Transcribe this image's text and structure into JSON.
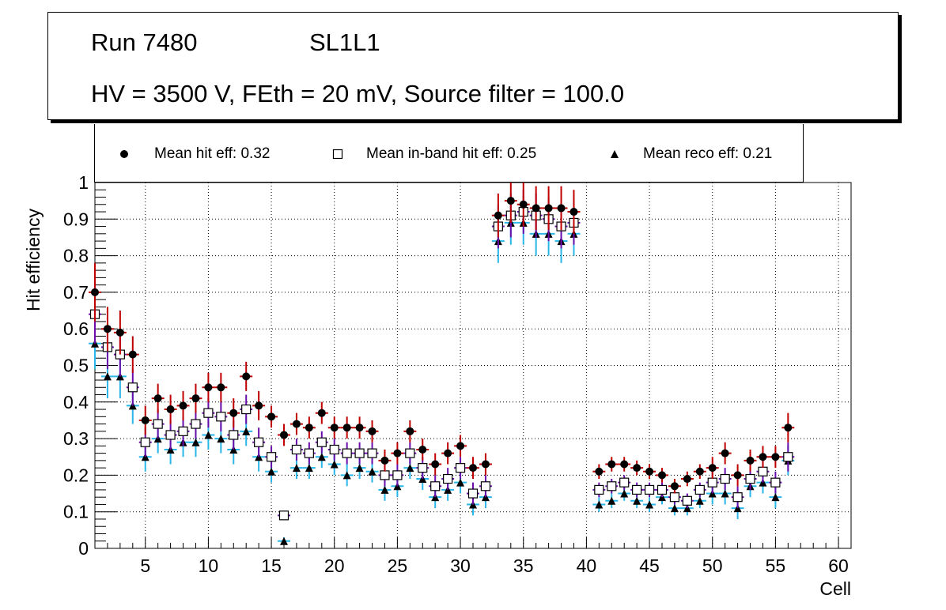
{
  "title_box": {
    "run": "Run 7480",
    "layer": "SL1L1",
    "conditions": "HV = 3500 V, FEth = 20 mV, Source filter = 100.0"
  },
  "legend": {
    "hit": "Mean hit  eff: 0.32",
    "inband": "Mean in-band hit eff: 0.25",
    "reco": "Mean reco eff: 0.21"
  },
  "colors": {
    "hit_marker": "#000000",
    "hit_error": "#c00000",
    "inband_error": "#6a0dad",
    "reco_error": "#29b6e8"
  },
  "chart_data": {
    "type": "scatter",
    "xlabel": "Cell",
    "ylabel": "Hit efficiency",
    "xlim": [
      1,
      61
    ],
    "ylim": [
      0,
      1
    ],
    "xticks": [
      5,
      10,
      15,
      20,
      25,
      30,
      35,
      40,
      45,
      50,
      55,
      60
    ],
    "yticks": [
      0,
      0.1,
      0.2,
      0.3,
      0.4,
      0.5,
      0.6,
      0.7,
      0.8,
      0.9,
      1
    ],
    "grid": true,
    "x": [
      1,
      2,
      3,
      4,
      5,
      6,
      7,
      8,
      9,
      10,
      11,
      12,
      13,
      14,
      15,
      16,
      17,
      18,
      19,
      20,
      21,
      22,
      23,
      24,
      25,
      26,
      27,
      28,
      29,
      30,
      31,
      32,
      33,
      34,
      35,
      36,
      37,
      38,
      39,
      41,
      42,
      43,
      44,
      45,
      46,
      47,
      48,
      49,
      50,
      51,
      52,
      53,
      54,
      55,
      56
    ],
    "series": [
      {
        "name": "Mean hit  eff: 0.32",
        "marker": "filled-circle",
        "values": [
          0.7,
          0.6,
          0.59,
          0.53,
          0.35,
          0.41,
          0.38,
          0.39,
          0.41,
          0.44,
          0.44,
          0.37,
          0.47,
          0.39,
          0.36,
          0.31,
          0.34,
          0.33,
          0.37,
          0.33,
          0.33,
          0.33,
          0.32,
          0.24,
          0.26,
          0.32,
          0.27,
          0.23,
          0.26,
          0.28,
          0.22,
          0.23,
          0.91,
          0.95,
          0.94,
          0.93,
          0.93,
          0.93,
          0.92,
          0.21,
          0.23,
          0.23,
          0.22,
          0.21,
          0.2,
          0.17,
          0.19,
          0.21,
          0.22,
          0.26,
          0.2,
          0.24,
          0.25,
          0.25,
          0.33
        ],
        "errors": [
          0.08,
          0.06,
          0.06,
          0.05,
          0.04,
          0.04,
          0.04,
          0.04,
          0.04,
          0.04,
          0.04,
          0.04,
          0.04,
          0.04,
          0.03,
          0.03,
          0.03,
          0.03,
          0.03,
          0.03,
          0.03,
          0.03,
          0.03,
          0.03,
          0.03,
          0.03,
          0.03,
          0.03,
          0.03,
          0.03,
          0.03,
          0.03,
          0.06,
          0.06,
          0.06,
          0.06,
          0.06,
          0.06,
          0.06,
          0.02,
          0.02,
          0.02,
          0.02,
          0.02,
          0.02,
          0.02,
          0.02,
          0.02,
          0.03,
          0.03,
          0.03,
          0.03,
          0.03,
          0.03,
          0.04
        ]
      },
      {
        "name": "Mean in-band hit eff: 0.25",
        "marker": "open-square",
        "values": [
          0.64,
          0.55,
          0.53,
          0.44,
          0.29,
          0.34,
          0.31,
          0.32,
          0.34,
          0.37,
          0.36,
          0.31,
          0.38,
          0.29,
          0.25,
          0.09,
          0.27,
          0.26,
          0.29,
          0.27,
          0.26,
          0.26,
          0.26,
          0.2,
          0.2,
          0.26,
          0.22,
          0.17,
          0.19,
          0.22,
          0.15,
          0.17,
          0.88,
          0.91,
          0.92,
          0.91,
          0.9,
          0.88,
          0.89,
          0.16,
          0.17,
          0.18,
          0.16,
          0.16,
          0.16,
          0.14,
          0.13,
          0.16,
          0.18,
          0.19,
          0.14,
          0.19,
          0.21,
          0.18,
          0.25
        ],
        "errors": [
          0.08,
          0.06,
          0.06,
          0.05,
          0.04,
          0.04,
          0.04,
          0.04,
          0.04,
          0.04,
          0.04,
          0.04,
          0.04,
          0.04,
          0.03,
          0.01,
          0.03,
          0.03,
          0.03,
          0.03,
          0.03,
          0.03,
          0.03,
          0.03,
          0.03,
          0.03,
          0.03,
          0.03,
          0.03,
          0.03,
          0.03,
          0.03,
          0.06,
          0.06,
          0.06,
          0.06,
          0.06,
          0.06,
          0.06,
          0.02,
          0.02,
          0.02,
          0.02,
          0.02,
          0.02,
          0.02,
          0.02,
          0.02,
          0.03,
          0.03,
          0.03,
          0.03,
          0.03,
          0.03,
          0.04
        ]
      },
      {
        "name": "Mean reco eff: 0.21",
        "marker": "filled-triangle",
        "values": [
          0.56,
          0.47,
          0.47,
          0.39,
          0.25,
          0.3,
          0.27,
          0.29,
          0.29,
          0.31,
          0.3,
          0.27,
          0.32,
          0.25,
          0.21,
          0.02,
          0.22,
          0.22,
          0.25,
          0.23,
          0.2,
          0.22,
          0.21,
          0.16,
          0.17,
          0.22,
          0.19,
          0.14,
          0.16,
          0.18,
          0.12,
          0.14,
          0.84,
          0.89,
          0.89,
          0.86,
          0.86,
          0.84,
          0.86,
          0.12,
          0.13,
          0.15,
          0.13,
          0.12,
          0.14,
          0.11,
          0.11,
          0.13,
          0.15,
          0.15,
          0.11,
          0.17,
          0.18,
          0.14,
          0.24
        ],
        "errors": [
          0.07,
          0.06,
          0.06,
          0.05,
          0.04,
          0.04,
          0.04,
          0.04,
          0.04,
          0.04,
          0.04,
          0.04,
          0.04,
          0.04,
          0.03,
          0.01,
          0.03,
          0.03,
          0.03,
          0.03,
          0.03,
          0.03,
          0.03,
          0.03,
          0.03,
          0.03,
          0.03,
          0.03,
          0.03,
          0.03,
          0.03,
          0.03,
          0.06,
          0.06,
          0.06,
          0.06,
          0.06,
          0.06,
          0.06,
          0.02,
          0.02,
          0.02,
          0.02,
          0.02,
          0.02,
          0.02,
          0.02,
          0.02,
          0.03,
          0.03,
          0.03,
          0.03,
          0.03,
          0.03,
          0.04
        ]
      }
    ]
  }
}
